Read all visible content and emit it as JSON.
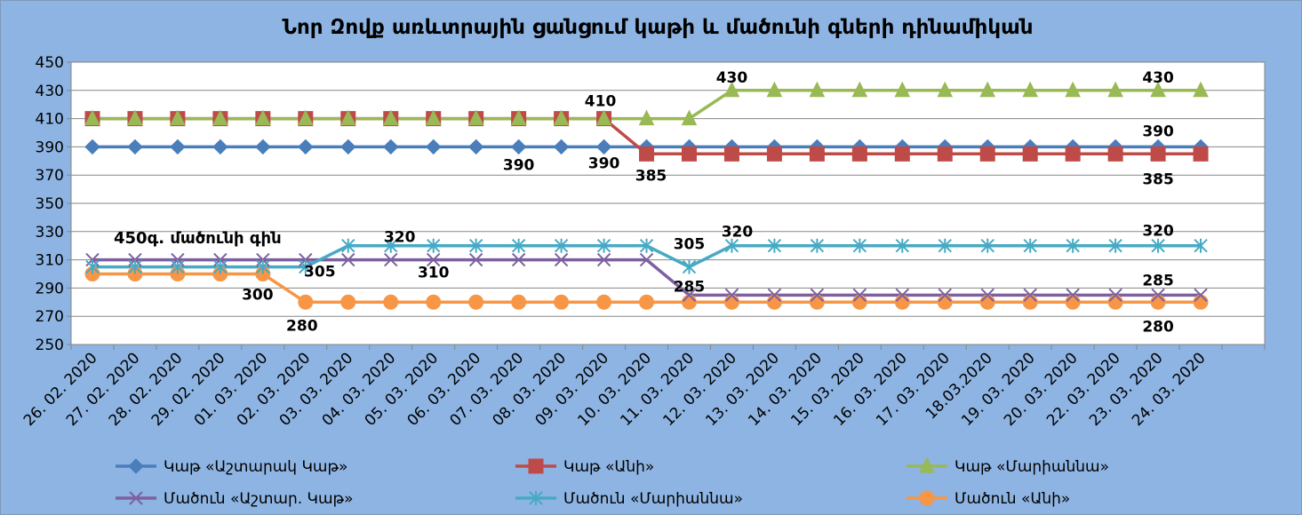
{
  "chart_data": {
    "type": "line",
    "title": "Նոր Զովք առևտրային ցանցում կաթի և մածունի գների դինամիկան",
    "annotation": "450գ. մածունի գին",
    "categories": [
      "26. 02. 2020",
      "27. 02. 2020",
      "28. 02. 2020",
      "29. 02. 2020",
      "01. 03. 2020",
      "02. 03. 2020",
      "03. 03. 2020",
      "04. 03. 2020",
      "05. 03. 2020",
      "06. 03. 2020",
      "07. 03. 2020",
      "08. 03. 2020",
      "09. 03. 2020",
      "10. 03. 2020",
      "11. 03. 2020",
      "12. 03. 2020",
      "13. 03. 2020",
      "14. 03. 2020",
      "15. 03. 2020",
      "16. 03. 2020",
      "17. 03. 2020",
      "18.03.2020",
      "19. 03. 2020",
      "20. 03. 2020",
      "22. 03. 2020",
      "23. 03. 2020",
      "24. 03. 2020"
    ],
    "ylim": [
      250,
      450
    ],
    "yticks": [
      250,
      270,
      290,
      310,
      330,
      350,
      370,
      390,
      410,
      430,
      450
    ],
    "grid": true,
    "legend_position": "bottom",
    "series": [
      {
        "name": "Կաթ «Աշտարակ Կաթ»",
        "color": "#4a7ebb",
        "marker": "diamond",
        "values": [
          390,
          390,
          390,
          390,
          390,
          390,
          390,
          390,
          390,
          390,
          390,
          390,
          390,
          390,
          390,
          390,
          390,
          390,
          390,
          390,
          390,
          390,
          390,
          390,
          390,
          390,
          390
        ]
      },
      {
        "name": "Կաթ «Անի»",
        "color": "#be4b48",
        "marker": "square",
        "values": [
          410,
          410,
          410,
          410,
          410,
          410,
          410,
          410,
          410,
          410,
          410,
          410,
          410,
          385,
          385,
          385,
          385,
          385,
          385,
          385,
          385,
          385,
          385,
          385,
          385,
          385,
          385
        ]
      },
      {
        "name": "Կաթ «Մարիաննա»",
        "color": "#98b954",
        "marker": "triangle",
        "values": [
          410,
          410,
          410,
          410,
          410,
          410,
          410,
          410,
          410,
          410,
          410,
          410,
          410,
          410,
          410,
          430,
          430,
          430,
          430,
          430,
          430,
          430,
          430,
          430,
          430,
          430,
          430
        ]
      },
      {
        "name": "Մածուն «Աշտար. Կաթ»",
        "color": "#7d60a0",
        "marker": "x",
        "values": [
          310,
          310,
          310,
          310,
          310,
          310,
          310,
          310,
          310,
          310,
          310,
          310,
          310,
          310,
          285,
          285,
          285,
          285,
          285,
          285,
          285,
          285,
          285,
          285,
          285,
          285,
          285
        ]
      },
      {
        "name": "Մածուն «Մարիաննա»",
        "color": "#46aac5",
        "marker": "star",
        "values": [
          305,
          305,
          305,
          305,
          305,
          305,
          320,
          320,
          320,
          320,
          320,
          320,
          320,
          320,
          305,
          320,
          320,
          320,
          320,
          320,
          320,
          320,
          320,
          320,
          320,
          320,
          320
        ]
      },
      {
        "name": "Մածուն «Անի»",
        "color": "#f79646",
        "marker": "circle",
        "values": [
          300,
          300,
          300,
          300,
          300,
          280,
          280,
          280,
          280,
          280,
          280,
          280,
          280,
          280,
          280,
          280,
          280,
          280,
          280,
          280,
          280,
          280,
          280,
          280,
          280,
          280,
          280
        ]
      }
    ],
    "data_labels": [
      {
        "series": 0,
        "index": 10,
        "text": "390"
      },
      {
        "series": 0,
        "index": 12,
        "text": "390"
      },
      {
        "series": 0,
        "index": 25,
        "text": "390"
      },
      {
        "series": 1,
        "index": 12,
        "text": "410"
      },
      {
        "series": 1,
        "index": 13,
        "text": "385"
      },
      {
        "series": 1,
        "index": 25,
        "text": "385"
      },
      {
        "series": 2,
        "index": 15,
        "text": "430"
      },
      {
        "series": 2,
        "index": 25,
        "text": "430"
      },
      {
        "series": 3,
        "index": 8,
        "text": "310"
      },
      {
        "series": 3,
        "index": 14,
        "text": "285"
      },
      {
        "series": 3,
        "index": 25,
        "text": "285"
      },
      {
        "series": 4,
        "index": 5,
        "text": "305"
      },
      {
        "series": 4,
        "index": 7,
        "text": "320"
      },
      {
        "series": 4,
        "index": 14,
        "text": "305"
      },
      {
        "series": 4,
        "index": 15,
        "text": "320"
      },
      {
        "series": 4,
        "index": 25,
        "text": "320"
      },
      {
        "series": 5,
        "index": 4,
        "text": "300"
      },
      {
        "series": 5,
        "index": 5,
        "text": "280"
      },
      {
        "series": 5,
        "index": 25,
        "text": "280"
      }
    ]
  }
}
